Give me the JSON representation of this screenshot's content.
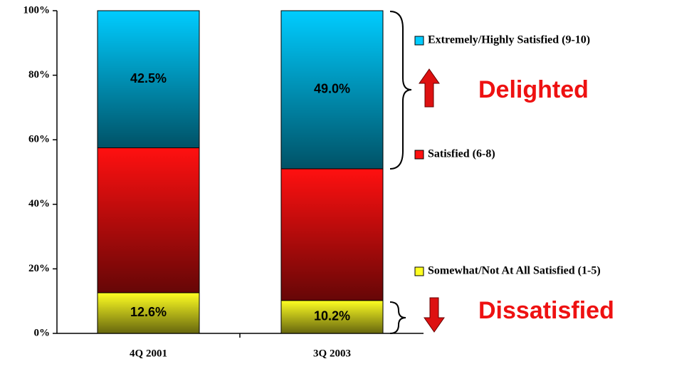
{
  "chart_data": {
    "type": "stacked_bar",
    "categories": [
      "4Q 2001",
      "3Q 2003"
    ],
    "series": [
      {
        "name": "Somewhat/Not At All Satisfied (1-5)",
        "color": "#ffff22",
        "values": [
          12.6,
          10.2
        ],
        "value_labels": [
          "12.6%",
          "10.2%"
        ]
      },
      {
        "name": "Satisfied (6-8)",
        "color": "#ff1010",
        "values": [
          44.9,
          40.8
        ]
      },
      {
        "name": "Extremely/Highly Satisfied (9-10)",
        "color": "#00ccff",
        "values": [
          42.5,
          49.0
        ],
        "value_labels": [
          "42.5%",
          "49.0%"
        ]
      }
    ],
    "ylim": [
      0,
      100
    ],
    "yticks": [
      {
        "value": 0,
        "label": "0%"
      },
      {
        "value": 20,
        "label": "20%"
      },
      {
        "value": 40,
        "label": "40%"
      },
      {
        "value": 60,
        "label": "60%"
      },
      {
        "value": 80,
        "label": "80%"
      },
      {
        "value": 100,
        "label": "100%"
      }
    ],
    "annotations": [
      "Delighted",
      "Dissatisfied"
    ]
  }
}
